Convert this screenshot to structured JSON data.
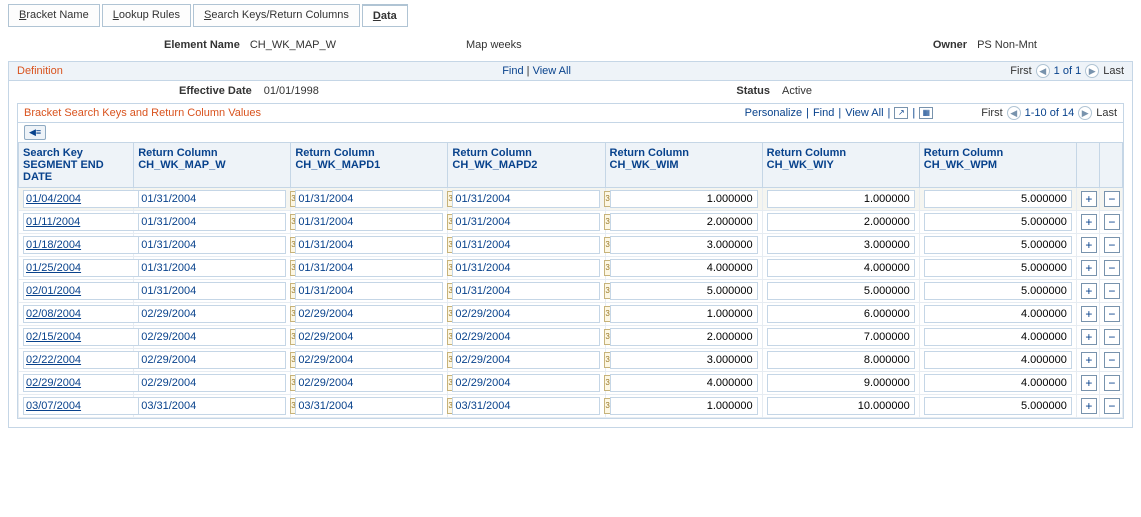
{
  "tabs": {
    "bracket_name": "Bracket Name",
    "lookup_rules": "Lookup Rules",
    "search_keys": "Search Keys/Return Columns",
    "data": "Data"
  },
  "header": {
    "element_name_label": "Element Name",
    "element_name": "CH_WK_MAP_W",
    "desc": "Map weeks",
    "owner_label": "Owner",
    "owner": "PS Non-Mnt"
  },
  "definition": {
    "title": "Definition",
    "find": "Find",
    "view_all": "View All",
    "first": "First",
    "last": "Last",
    "pager_text": "1 of 1",
    "eff_date_label": "Effective Date",
    "eff_date": "01/01/1998",
    "status_label": "Status",
    "status": "Active"
  },
  "grid": {
    "title": "Bracket Search Keys and Return Column Values",
    "personalize": "Personalize",
    "find": "Find",
    "view_all": "View All",
    "first": "First",
    "last": "Last",
    "pager_text": "1-10 of 14",
    "columns": {
      "seg_end": "Search Key SEGMENT END DATE",
      "map_w": "Return Column CH_WK_MAP_W",
      "mapd1": "Return Column CH_WK_MAPD1",
      "mapd2": "Return Column CH_WK_MAPD2",
      "wim": "Return Column CH_WK_WIM",
      "wiy": "Return Column CH_WK_WIY",
      "wpm": "Return Column CH_WK_WPM"
    }
  },
  "rows": [
    {
      "seg": "01/04/2004",
      "mapw": "01/31/2004",
      "mapd1": "01/31/2004",
      "mapd2": "01/31/2004",
      "wim": "1.000000",
      "wiy": "1.000000",
      "wpm": "5.000000"
    },
    {
      "seg": "01/11/2004",
      "mapw": "01/31/2004",
      "mapd1": "01/31/2004",
      "mapd2": "01/31/2004",
      "wim": "2.000000",
      "wiy": "2.000000",
      "wpm": "5.000000"
    },
    {
      "seg": "01/18/2004",
      "mapw": "01/31/2004",
      "mapd1": "01/31/2004",
      "mapd2": "01/31/2004",
      "wim": "3.000000",
      "wiy": "3.000000",
      "wpm": "5.000000"
    },
    {
      "seg": "01/25/2004",
      "mapw": "01/31/2004",
      "mapd1": "01/31/2004",
      "mapd2": "01/31/2004",
      "wim": "4.000000",
      "wiy": "4.000000",
      "wpm": "5.000000"
    },
    {
      "seg": "02/01/2004",
      "mapw": "01/31/2004",
      "mapd1": "01/31/2004",
      "mapd2": "01/31/2004",
      "wim": "5.000000",
      "wiy": "5.000000",
      "wpm": "5.000000"
    },
    {
      "seg": "02/08/2004",
      "mapw": "02/29/2004",
      "mapd1": "02/29/2004",
      "mapd2": "02/29/2004",
      "wim": "1.000000",
      "wiy": "6.000000",
      "wpm": "4.000000"
    },
    {
      "seg": "02/15/2004",
      "mapw": "02/29/2004",
      "mapd1": "02/29/2004",
      "mapd2": "02/29/2004",
      "wim": "2.000000",
      "wiy": "7.000000",
      "wpm": "4.000000"
    },
    {
      "seg": "02/22/2004",
      "mapw": "02/29/2004",
      "mapd1": "02/29/2004",
      "mapd2": "02/29/2004",
      "wim": "3.000000",
      "wiy": "8.000000",
      "wpm": "4.000000"
    },
    {
      "seg": "02/29/2004",
      "mapw": "02/29/2004",
      "mapd1": "02/29/2004",
      "mapd2": "02/29/2004",
      "wim": "4.000000",
      "wiy": "9.000000",
      "wpm": "4.000000"
    },
    {
      "seg": "03/07/2004",
      "mapw": "03/31/2004",
      "mapd1": "03/31/2004",
      "mapd2": "03/31/2004",
      "wim": "1.000000",
      "wiy": "10.000000",
      "wpm": "5.000000"
    }
  ],
  "icons": {
    "cal": "31",
    "out": "↗",
    "sheet": "▦",
    "collapse": "◀≡"
  }
}
